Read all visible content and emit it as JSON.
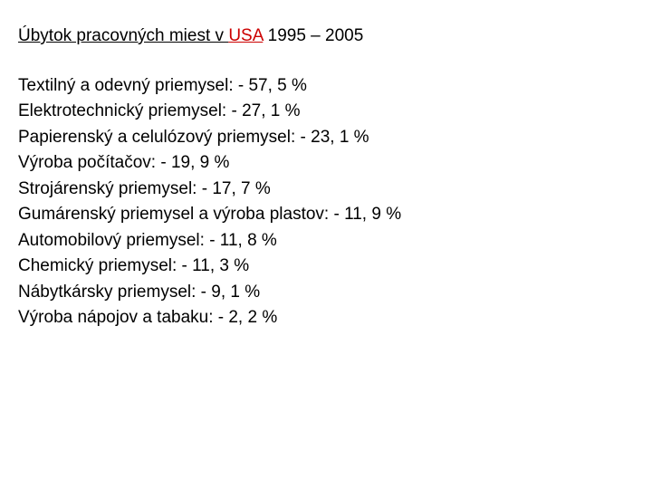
{
  "title": {
    "prefix": "Úbytok pracovných miest v ",
    "usa": "USA",
    "suffix": " 1995 – 2005"
  },
  "items": [
    {
      "text": "Textilný a odevný priemysel: - 57, 5  %"
    },
    {
      "text": "Elektrotechnický priemysel: - 27, 1 %"
    },
    {
      "text": "Papierenský a celulózový priemysel: - 23, 1 %"
    },
    {
      "text": "Výroba počítačov: - 19, 9 %"
    },
    {
      "text": "Strojárenský priemysel: - 17, 7 %"
    },
    {
      "text": "Gumárenský priemysel a výroba plastov: - 11, 9 %"
    },
    {
      "text": "Automobilový priemysel: - 11, 8 %"
    },
    {
      "text": "Chemický priemysel: - 11, 3 %"
    },
    {
      "text": "Nábytkársky priemysel: - 9, 1 %"
    },
    {
      "text": "Výroba nápojov a tabaku: - 2, 2 %"
    }
  ],
  "styles": {
    "background_color": "#ffffff",
    "text_color": "#000000",
    "usa_color": "#cc0000",
    "font_family": "Arial",
    "title_fontsize": 19,
    "body_fontsize": 19,
    "line_height": 1.5
  }
}
